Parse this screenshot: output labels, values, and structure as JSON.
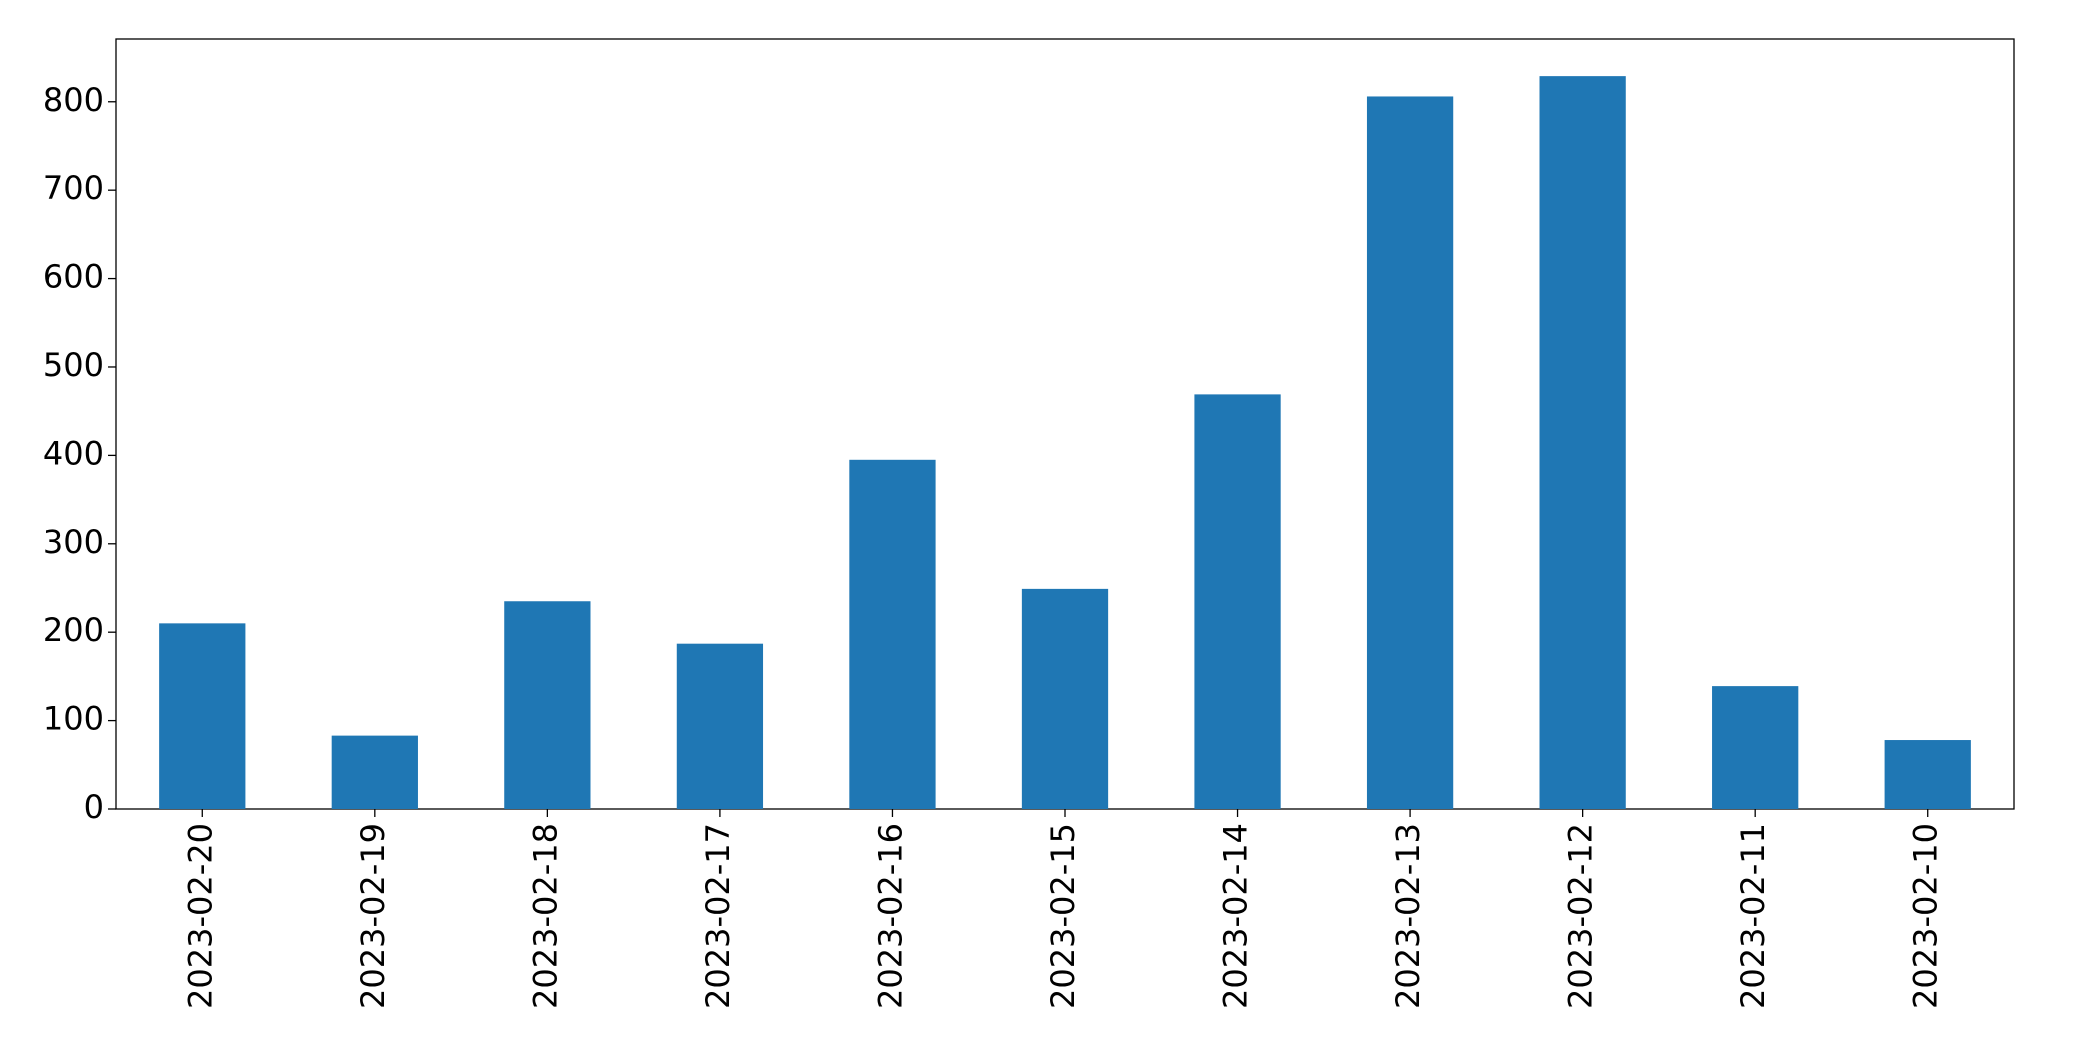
{
  "chart_data": {
    "type": "bar",
    "categories": [
      "2023-02-20",
      "2023-02-19",
      "2023-02-18",
      "2023-02-17",
      "2023-02-16",
      "2023-02-15",
      "2023-02-14",
      "2023-02-13",
      "2023-02-12",
      "2023-02-11",
      "2023-02-10"
    ],
    "values": [
      210,
      83,
      235,
      187,
      395,
      249,
      469,
      806,
      829,
      139,
      78
    ],
    "color": "#1f77b4",
    "ylim": [
      0,
      871
    ],
    "yticks": [
      0,
      100,
      200,
      300,
      400,
      500,
      600,
      700,
      800
    ],
    "grid": false
  }
}
